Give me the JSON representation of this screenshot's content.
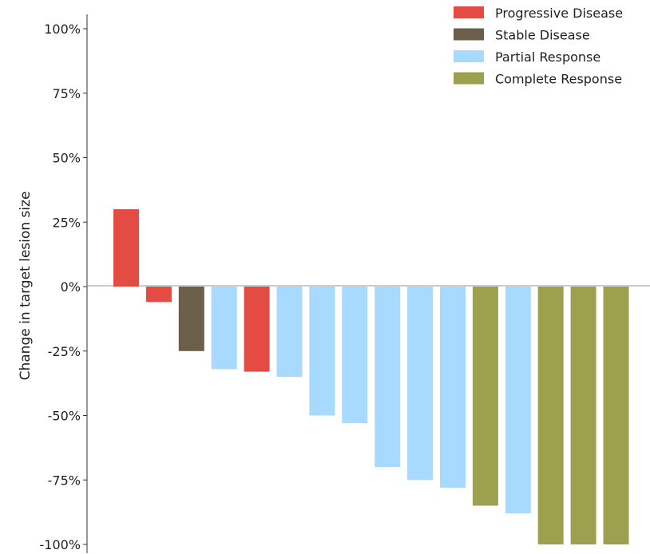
{
  "chart_data": {
    "type": "bar",
    "title": "",
    "xlabel": "",
    "ylabel": "Change in target lesion size",
    "ylim": [
      -100,
      100
    ],
    "y_unit": "%",
    "y_ticks": [
      100,
      75,
      50,
      25,
      0,
      -25,
      -50,
      -75,
      -100
    ],
    "y_tick_labels": [
      "100%",
      "75%",
      "50%",
      "25%",
      "0%",
      "-25%",
      "-50%",
      "-75%",
      "-100%"
    ],
    "grid": false,
    "legend_position": "top-right",
    "legend": [
      {
        "label": "Progressive Disease",
        "color": "#e34b43"
      },
      {
        "label": "Stable Disease",
        "color": "#6b5f4c"
      },
      {
        "label": "Partial Response",
        "color": "#a8d9fe"
      },
      {
        "label": "Complete Response",
        "color": "#9ca04f"
      }
    ],
    "bars": [
      {
        "value": 30,
        "category": "Progressive Disease"
      },
      {
        "value": -6,
        "category": "Progressive Disease"
      },
      {
        "value": -25,
        "category": "Stable Disease"
      },
      {
        "value": -32,
        "category": "Partial Response"
      },
      {
        "value": -33,
        "category": "Progressive Disease"
      },
      {
        "value": -35,
        "category": "Partial Response"
      },
      {
        "value": -50,
        "category": "Partial Response"
      },
      {
        "value": -53,
        "category": "Partial Response"
      },
      {
        "value": -70,
        "category": "Partial Response"
      },
      {
        "value": -75,
        "category": "Partial Response"
      },
      {
        "value": -78,
        "category": "Partial Response"
      },
      {
        "value": -85,
        "category": "Complete Response"
      },
      {
        "value": -88,
        "category": "Partial Response"
      },
      {
        "value": -100,
        "category": "Complete Response"
      },
      {
        "value": -100,
        "category": "Complete Response"
      },
      {
        "value": -100,
        "category": "Complete Response"
      }
    ]
  }
}
